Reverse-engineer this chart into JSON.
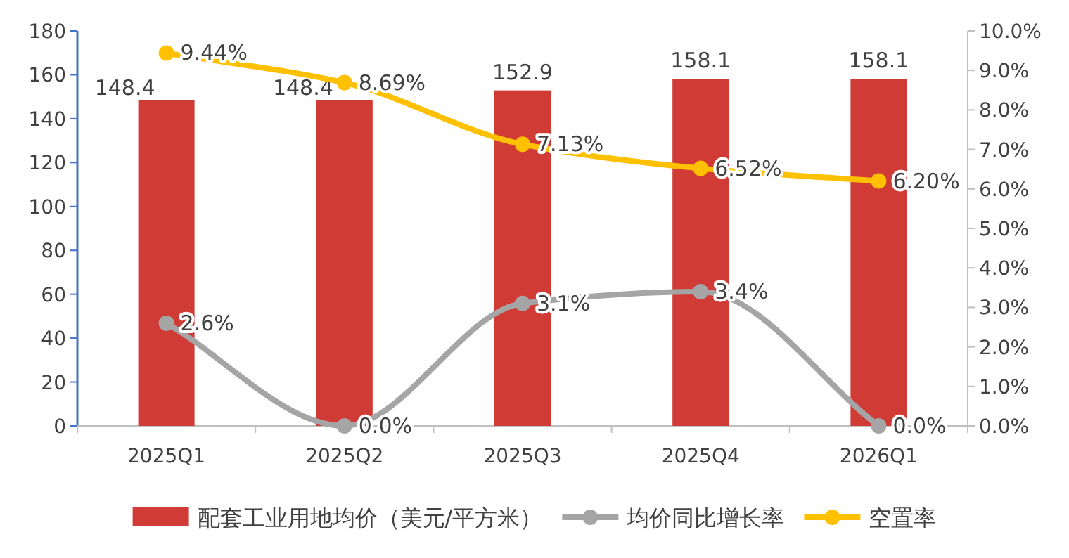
{
  "chart_data": {
    "type": "bar",
    "categories": [
      "2025Q1",
      "2025Q2",
      "2025Q3",
      "2025Q4",
      "2026Q1"
    ],
    "series": [
      {
        "name": "配套工业用地均价（美元/平方米）",
        "color": "#d13b36",
        "values": [
          148.4,
          148.4,
          152.9,
          158.1,
          158.1
        ],
        "value_labels": [
          "148.4",
          "148.4",
          "152.9",
          "158.1",
          "158.1"
        ]
      },
      {
        "name": "均价同比增长率",
        "type": "line",
        "axis": "y2",
        "color": "#a5a5a5",
        "marker": "circle",
        "values": [
          2.6,
          0.0,
          3.1,
          3.4,
          0.0
        ],
        "value_labels": [
          "2.6%",
          "0.0%",
          "3.1%",
          "3.4%",
          "0.0%"
        ]
      },
      {
        "name": "空置率",
        "type": "line",
        "axis": "y2",
        "color": "#ffc000",
        "marker": "circle",
        "values": [
          9.44,
          8.69,
          7.13,
          6.52,
          6.2
        ],
        "value_labels": [
          "9.44%",
          "8.69%",
          "7.13%",
          "6.52%",
          "6.20%"
        ]
      }
    ],
    "ylim": [
      0,
      180
    ],
    "yticks": [
      0,
      20,
      40,
      60,
      80,
      100,
      120,
      140,
      160,
      180
    ],
    "y2lim": [
      0,
      10
    ],
    "y2ticks": [
      {
        "value": 0,
        "label": "0.0%"
      },
      {
        "value": 1,
        "label": "1.0%"
      },
      {
        "value": 2,
        "label": "2.0%"
      },
      {
        "value": 3,
        "label": "3.0%"
      },
      {
        "value": 4,
        "label": "4.0%"
      },
      {
        "value": 5,
        "label": "5.0%"
      },
      {
        "value": 6,
        "label": "6.0%"
      },
      {
        "value": 7,
        "label": "7.0%"
      },
      {
        "value": 8,
        "label": "8.0%"
      },
      {
        "value": 9,
        "label": "9.0%"
      },
      {
        "value": 10,
        "label": "10.0%"
      }
    ],
    "grid": false,
    "legend": "bottom"
  }
}
